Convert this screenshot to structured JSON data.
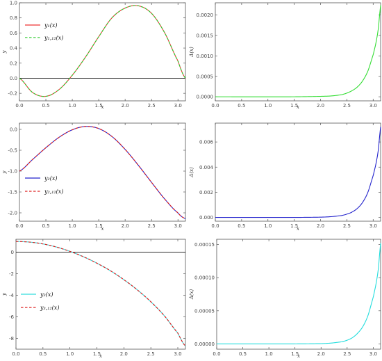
{
  "chart_data": [
    {
      "type": "line",
      "xlabel": "x",
      "ylabel": "y",
      "xlim": [
        0,
        3.14159
      ],
      "ylim": [
        -0.3,
        1.0
      ],
      "xticks": [
        "0.0",
        "0.5",
        "1.0",
        "1.5",
        "2.0",
        "2.5",
        "3.0"
      ],
      "yticks": [
        "-0.2",
        "0.0",
        "0.2",
        "0.4",
        "0.6",
        "0.8",
        "1.0"
      ],
      "legend_placement": "top-left",
      "zero_line": true,
      "series": [
        {
          "name": "y₁(x)",
          "style": "solid",
          "color": "#ee3333",
          "x": [
            0,
            0.25,
            0.5,
            0.75,
            1.0,
            1.25,
            1.5,
            1.75,
            2.0,
            2.25,
            2.5,
            2.75,
            3.0,
            3.1416
          ],
          "values": [
            0,
            -0.19,
            -0.24,
            -0.15,
            0.04,
            0.28,
            0.55,
            0.8,
            0.93,
            0.96,
            0.86,
            0.6,
            0.23,
            0
          ]
        },
        {
          "name": "y₁,₁₂(x)",
          "style": "dashed",
          "color": "#33cc33",
          "x": [
            0,
            0.25,
            0.5,
            0.75,
            1.0,
            1.25,
            1.5,
            1.75,
            2.0,
            2.25,
            2.5,
            2.75,
            3.0,
            3.1416
          ],
          "values": [
            0,
            -0.19,
            -0.24,
            -0.15,
            0.04,
            0.28,
            0.55,
            0.8,
            0.93,
            0.96,
            0.86,
            0.6,
            0.23,
            0
          ]
        }
      ]
    },
    {
      "type": "line",
      "xlabel": "x",
      "ylabel": "Δ(x)",
      "xlim": [
        0,
        3.14159
      ],
      "ylim": [
        -0.0001,
        0.0023
      ],
      "xticks": [
        "0.0",
        "0.5",
        "1.0",
        "1.5",
        "2.0",
        "2.5",
        "3.0"
      ],
      "yticks": [
        "0.0000",
        "0.0005",
        "0.0010",
        "0.0015",
        "0.0020"
      ],
      "series": [
        {
          "color": "#33dd33",
          "style": "solid",
          "x": [
            0,
            1.5,
            2.0,
            2.2,
            2.4,
            2.5,
            2.6,
            2.7,
            2.8,
            2.9,
            3.0,
            3.05,
            3.1,
            3.1416
          ],
          "values": [
            0,
            0,
            1e-05,
            2e-05,
            5e-05,
            9e-05,
            0.00015,
            0.00024,
            0.00039,
            0.00063,
            0.00102,
            0.0013,
            0.00168,
            0.00224
          ]
        }
      ]
    },
    {
      "type": "line",
      "xlabel": "x",
      "ylabel": "y",
      "xlim": [
        0,
        3.14159
      ],
      "ylim": [
        -2.2,
        0.15
      ],
      "xticks": [
        "0.0",
        "0.5",
        "1.0",
        "1.5",
        "2.0",
        "2.5",
        "3.0"
      ],
      "yticks": [
        "-2.0",
        "-1.5",
        "-1.0",
        "-0.5",
        "0.0"
      ],
      "legend_placement": "bottom-left",
      "series": [
        {
          "name": "y₂(x)",
          "style": "solid",
          "color": "#2222cc",
          "x": [
            0,
            0.25,
            0.5,
            0.75,
            1.0,
            1.25,
            1.5,
            1.75,
            2.0,
            2.25,
            2.5,
            2.75,
            3.0,
            3.1416
          ],
          "values": [
            -1.0,
            -0.72,
            -0.44,
            -0.19,
            -0.01,
            0.07,
            0.02,
            -0.17,
            -0.48,
            -0.86,
            -1.27,
            -1.67,
            -2.0,
            -2.14
          ]
        },
        {
          "name": "y₂,₁₂(x)",
          "style": "dashed",
          "color": "#dd2222",
          "x": [
            0,
            0.25,
            0.5,
            0.75,
            1.0,
            1.25,
            1.5,
            1.75,
            2.0,
            2.25,
            2.5,
            2.75,
            3.0,
            3.1416
          ],
          "values": [
            -1.0,
            -0.72,
            -0.44,
            -0.19,
            -0.01,
            0.07,
            0.02,
            -0.17,
            -0.48,
            -0.86,
            -1.27,
            -1.67,
            -2.0,
            -2.14
          ]
        }
      ]
    },
    {
      "type": "line",
      "xlabel": "x",
      "ylabel": "Δ(x)",
      "xlim": [
        0,
        3.14159
      ],
      "ylim": [
        -0.0003,
        0.0075
      ],
      "xticks": [
        "0.0",
        "0.5",
        "1.0",
        "1.5",
        "2.0",
        "2.5",
        "3.0"
      ],
      "yticks": [
        "0.000",
        "0.002",
        "0.004",
        "0.006"
      ],
      "series": [
        {
          "color": "#2222cc",
          "style": "solid",
          "x": [
            0,
            1.5,
            2.0,
            2.2,
            2.4,
            2.5,
            2.6,
            2.7,
            2.8,
            2.9,
            3.0,
            3.05,
            3.1,
            3.1416
          ],
          "values": [
            0,
            0,
            2e-05,
            6e-05,
            0.00015,
            0.00026,
            0.00043,
            0.00072,
            0.0012,
            0.002,
            0.0033,
            0.0042,
            0.0054,
            0.0072
          ]
        }
      ]
    },
    {
      "type": "line",
      "xlabel": "x",
      "ylabel": "y",
      "xlim": [
        0,
        3.14159
      ],
      "ylim": [
        -9,
        1.2
      ],
      "xticks": [
        "0.0",
        "0.5",
        "1.0",
        "1.5",
        "2.0",
        "2.5",
        "3.0"
      ],
      "yticks": [
        "-8",
        "-6",
        "-4",
        "-2",
        "0"
      ],
      "legend_placement": "bottom-left",
      "zero_line": true,
      "series": [
        {
          "name": "y₃(x)",
          "style": "solid",
          "color": "#33dddd",
          "x": [
            0,
            0.25,
            0.5,
            0.75,
            1.0,
            1.25,
            1.5,
            1.75,
            2.0,
            2.25,
            2.5,
            2.75,
            3.0,
            3.1416
          ],
          "values": [
            1.0,
            0.94,
            0.77,
            0.48,
            0.08,
            -0.42,
            -1.02,
            -1.72,
            -2.55,
            -3.5,
            -4.6,
            -5.9,
            -7.5,
            -8.7
          ]
        },
        {
          "name": "y₃,₁₂(x)",
          "style": "dashed",
          "color": "#dd2222",
          "x": [
            0,
            0.25,
            0.5,
            0.75,
            1.0,
            1.25,
            1.5,
            1.75,
            2.0,
            2.25,
            2.5,
            2.75,
            3.0,
            3.1416
          ],
          "values": [
            1.0,
            0.94,
            0.77,
            0.48,
            0.08,
            -0.42,
            -1.02,
            -1.72,
            -2.55,
            -3.5,
            -4.6,
            -5.9,
            -7.5,
            -8.7
          ]
        }
      ]
    },
    {
      "type": "line",
      "xlabel": "x",
      "ylabel": "Δ(x)",
      "xlim": [
        0,
        3.14159
      ],
      "ylim": [
        -8e-06,
        0.000158
      ],
      "xticks": [
        "0.0",
        "0.5",
        "1.0",
        "1.5",
        "2.0",
        "2.5",
        "3.0"
      ],
      "yticks": [
        "0.00000",
        "0.00005",
        "0.00010",
        "0.00015"
      ],
      "series": [
        {
          "color": "#22dddd",
          "style": "solid",
          "x": [
            0,
            1.5,
            2.0,
            2.2,
            2.4,
            2.5,
            2.6,
            2.7,
            2.8,
            2.9,
            3.0,
            3.05,
            3.1,
            3.1416
          ],
          "values": [
            0,
            0,
            4e-07,
            1.3e-06,
            3.2e-06,
            5.5e-06,
            9.3e-06,
            1.6e-05,
            2.6e-05,
            4.3e-05,
            7e-05,
            8.9e-05,
            0.000114,
            0.000152
          ]
        }
      ]
    }
  ]
}
